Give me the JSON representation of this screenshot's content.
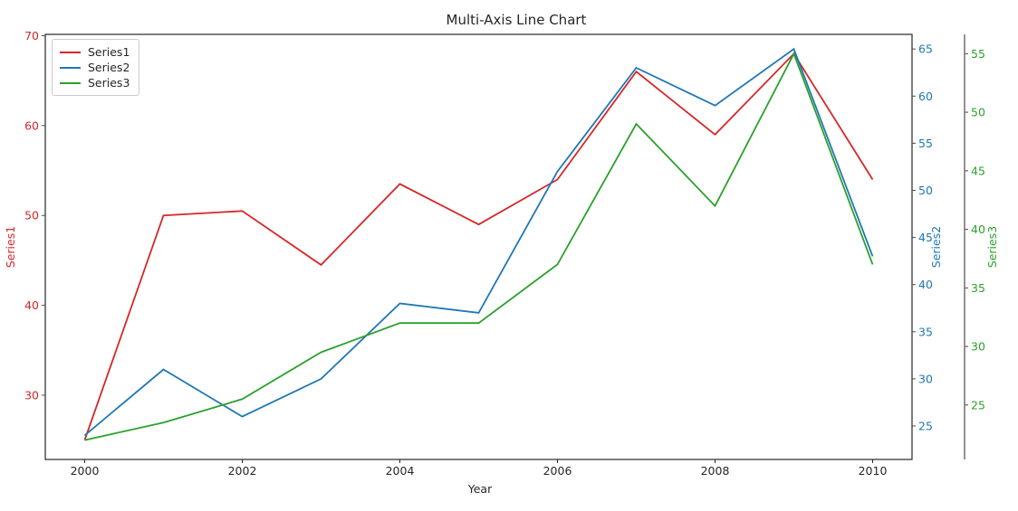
{
  "chart_data": {
    "type": "line",
    "title": "Multi-Axis Line Chart",
    "xlabel": "Year",
    "x": [
      2000,
      2001,
      2002,
      2003,
      2004,
      2005,
      2006,
      2007,
      2008,
      2009,
      2010
    ],
    "xticks": [
      2000,
      2002,
      2004,
      2006,
      2008,
      2010
    ],
    "xlim": [
      1999.5,
      2010.5
    ],
    "grid": false,
    "legend_position": "upper-left",
    "spine_color": "#262626",
    "series": [
      {
        "name": "Series1",
        "axis": "left",
        "color": "#d62728",
        "values": [
          25,
          50,
          50.5,
          44.5,
          53.5,
          49,
          54,
          66,
          59,
          68,
          54
        ],
        "ylim": [
          22.85,
          70.15
        ],
        "yticks": [
          30,
          40,
          50,
          60,
          70
        ],
        "ylabel": "Series1"
      },
      {
        "name": "Series2",
        "axis": "right-inner",
        "color": "#1f77b4",
        "values": [
          24,
          31,
          26,
          30,
          38,
          37,
          52,
          63,
          59,
          65,
          43
        ],
        "ylim": [
          21.45,
          66.55
        ],
        "yticks": [
          25,
          30,
          35,
          40,
          45,
          50,
          55,
          60,
          65
        ],
        "ylabel": "Series2"
      },
      {
        "name": "Series3",
        "axis": "right-outer",
        "color": "#2ca02c",
        "values": [
          22,
          23.5,
          25.5,
          29.5,
          32,
          32,
          37,
          49,
          42,
          55,
          37
        ],
        "ylim": [
          20.35,
          56.65
        ],
        "yticks": [
          25,
          30,
          35,
          40,
          45,
          50,
          55
        ],
        "ylabel": "Series3"
      }
    ]
  }
}
